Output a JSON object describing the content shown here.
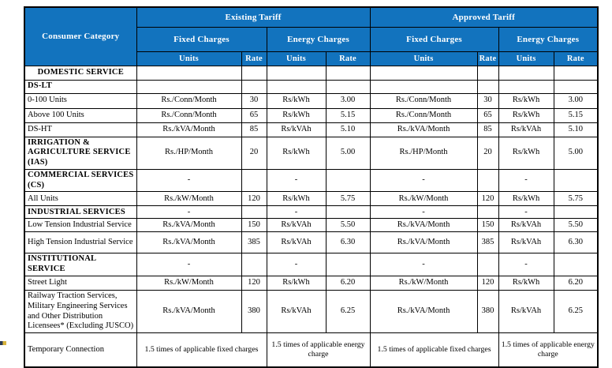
{
  "colors": {
    "header_bg": "#1273BE",
    "header_text": "#FFFFFF",
    "border": "#000000"
  },
  "table": {
    "header": {
      "consumer_category": "Consumer Category",
      "groups": [
        {
          "label": "Existing Tariff"
        },
        {
          "label": "Approved Tariff"
        }
      ],
      "charge_types": [
        {
          "label": "Fixed Charges"
        },
        {
          "label": "Energy Charges"
        },
        {
          "label": "Fixed Charges"
        },
        {
          "label": "Energy Charges"
        }
      ],
      "units_label": "Units",
      "rate_label": "Rate"
    },
    "rows": [
      {
        "type": "section-center",
        "category": "DOMESTIC SERVICE",
        "cells": [
          "",
          "",
          "",
          "",
          "",
          "",
          "",
          ""
        ]
      },
      {
        "type": "section",
        "category": "DS-LT",
        "cells": [
          "",
          "",
          "",
          "",
          "",
          "",
          "",
          ""
        ]
      },
      {
        "type": "item",
        "category": "0-100 Units",
        "cells": [
          "Rs./Conn/Month",
          "30",
          "Rs/kWh",
          "3.00",
          "Rs./Conn/Month",
          "30",
          "Rs/kWh",
          "3.00"
        ]
      },
      {
        "type": "item",
        "category": "Above 100 Units",
        "cells": [
          "Rs./Conn/Month",
          "65",
          "Rs/kWh",
          "5.15",
          "Rs./Conn/Month",
          "65",
          "Rs/kWh",
          "5.15"
        ]
      },
      {
        "type": "item",
        "category": "DS-HT",
        "cells": [
          "Rs./kVA/Month",
          "85",
          "Rs/kVAh",
          "5.10",
          "Rs./kVA/Month",
          "85",
          "Rs/kVAh",
          "5.10"
        ]
      },
      {
        "type": "section",
        "category": "IRRIGATION & AGRICULTURE SERVICE (IAS)",
        "cells": [
          "Rs./HP/Month",
          "20",
          "Rs/kWh",
          "5.00",
          "Rs./HP/Month",
          "20",
          "Rs/kWh",
          "5.00"
        ]
      },
      {
        "type": "section",
        "category": "COMMERCIAL SERVICES (CS)",
        "cells": [
          "-",
          "",
          "-",
          "",
          "-",
          "",
          "-",
          ""
        ]
      },
      {
        "type": "item",
        "category": "All Units",
        "cells": [
          "Rs./kW/Month",
          "120",
          "Rs/kWh",
          "5.75",
          "Rs./kW/Month",
          "120",
          "Rs/kWh",
          "5.75"
        ]
      },
      {
        "type": "section",
        "category": "INDUSTRIAL SERVICES",
        "cells": [
          "-",
          "",
          "-",
          "",
          "-",
          "",
          "-",
          ""
        ]
      },
      {
        "type": "item",
        "category": "Low Tension Industrial Service",
        "cells": [
          "Rs./kVA/Month",
          "150",
          "Rs/kVAh",
          "5.50",
          "Rs./kVA/Month",
          "150",
          "Rs/kVAh",
          "5.50"
        ]
      },
      {
        "type": "item",
        "category": "High Tension Industrial Service",
        "cells": [
          "Rs./kVA/Month",
          "385",
          "Rs/kVAh",
          "6.30",
          "Rs./kVA/Month",
          "385",
          "Rs/kVAh",
          "6.30"
        ]
      },
      {
        "type": "section",
        "category": "INSTITUTIONAL SERVICE",
        "cells": [
          "-",
          "",
          "-",
          "",
          "-",
          "",
          "-",
          ""
        ]
      },
      {
        "type": "item",
        "category": "Street Light",
        "cells": [
          "Rs./kW/Month",
          "120",
          "Rs/kWh",
          "6.20",
          "Rs./kW/Month",
          "120",
          "Rs/kWh",
          "6.20"
        ]
      },
      {
        "type": "item",
        "category": "Railway Traction Services, Military Engineering Services and Other Distribution Licensees* (Excluding JUSCO)",
        "cells": [
          "Rs./kVA/Month",
          "380",
          "Rs/kVAh",
          "6.25",
          "Rs./kVA/Month",
          "380",
          "Rs/kVAh",
          "6.25"
        ]
      },
      {
        "type": "merged",
        "category": "Temporary Connection",
        "cells": [
          "1.5 times of applicable fixed charges",
          "1.5 times of applicable energy charge",
          "1.5 times of applicable fixed charges",
          "1.5 times of applicable energy charge"
        ]
      }
    ]
  }
}
